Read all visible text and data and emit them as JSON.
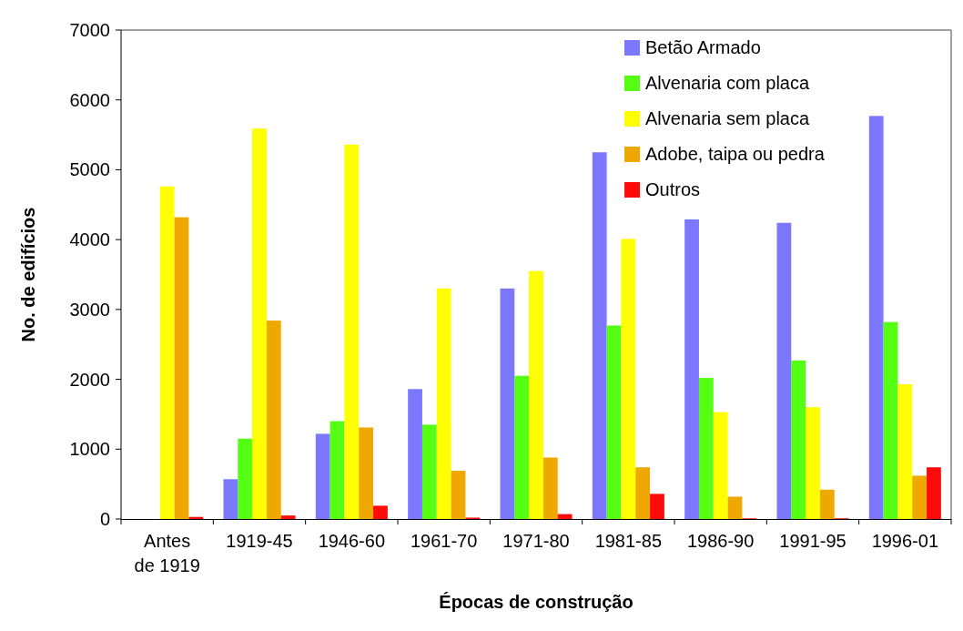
{
  "chart_data": {
    "type": "bar",
    "xlabel": "Épocas de construção",
    "ylabel": "No. de edifícios",
    "categories": [
      "Antes de 1919",
      "1919-45",
      "1946-60",
      "1961-70",
      "1971-80",
      "1981-85",
      "1986-90",
      "1991-95",
      "1996-01"
    ],
    "series": [
      {
        "name": "Betão Armado",
        "color": "#7b78ff",
        "values": [
          0,
          570,
          1220,
          1860,
          3300,
          5250,
          4290,
          4240,
          5770
        ]
      },
      {
        "name": "Alvenaria com placa",
        "color": "#55ff11",
        "values": [
          0,
          1150,
          1400,
          1350,
          2050,
          2770,
          2020,
          2270,
          2820
        ]
      },
      {
        "name": "Alvenaria sem placa",
        "color": "#ffff00",
        "values": [
          4760,
          5590,
          5360,
          3300,
          3550,
          4010,
          1530,
          1600,
          1930
        ]
      },
      {
        "name": "Adobe, taipa ou pedra",
        "color": "#eea800",
        "values": [
          4320,
          2840,
          1310,
          690,
          880,
          740,
          320,
          420,
          620
        ]
      },
      {
        "name": "Outros",
        "color": "#ff0a0a",
        "values": [
          30,
          50,
          190,
          20,
          70,
          360,
          10,
          10,
          740
        ]
      }
    ],
    "ylim": [
      0,
      7000
    ],
    "yticks": [
      0,
      1000,
      2000,
      3000,
      4000,
      5000,
      6000,
      7000
    ],
    "grid": false,
    "legend": "top right"
  }
}
